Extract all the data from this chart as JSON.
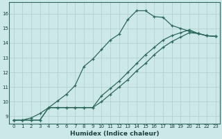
{
  "title": "",
  "xlabel": "Humidex (Indice chaleur)",
  "ylabel": "",
  "bg_color": "#cce8e8",
  "grid_color": "#b0cece",
  "line_color": "#2a6a5a",
  "xlim": [
    -0.5,
    23.5
  ],
  "ylim": [
    8.5,
    16.8
  ],
  "yticks": [
    9,
    10,
    11,
    12,
    13,
    14,
    15,
    16
  ],
  "xticks": [
    0,
    1,
    2,
    3,
    4,
    5,
    6,
    7,
    8,
    9,
    10,
    11,
    12,
    13,
    14,
    15,
    16,
    17,
    18,
    19,
    20,
    21,
    22,
    23
  ],
  "line1_x": [
    0,
    1,
    2,
    3,
    4,
    5,
    6,
    7,
    8,
    9,
    10,
    11,
    12,
    13,
    14,
    15,
    16,
    17,
    18,
    19,
    20,
    21,
    22,
    23
  ],
  "line1_y": [
    8.75,
    8.75,
    8.9,
    9.2,
    9.6,
    10.05,
    10.5,
    11.1,
    12.4,
    12.9,
    13.55,
    14.2,
    14.6,
    15.6,
    16.2,
    16.2,
    15.8,
    15.75,
    15.2,
    15.0,
    14.8,
    14.65,
    14.5,
    14.45
  ],
  "line2_x": [
    0,
    1,
    2,
    3,
    4,
    5,
    6,
    7,
    8,
    9,
    10,
    11,
    12,
    13,
    14,
    15,
    16,
    17,
    18,
    19,
    20,
    21,
    22,
    23
  ],
  "line2_y": [
    8.75,
    8.75,
    8.75,
    8.75,
    9.6,
    9.6,
    9.6,
    9.6,
    9.6,
    9.6,
    10.4,
    10.9,
    11.4,
    12.0,
    12.6,
    13.2,
    13.7,
    14.2,
    14.5,
    14.7,
    14.9,
    14.65,
    14.5,
    14.45
  ],
  "line3_x": [
    0,
    1,
    2,
    3,
    4,
    5,
    6,
    7,
    8,
    9,
    10,
    11,
    12,
    13,
    14,
    15,
    16,
    17,
    18,
    19,
    20,
    21,
    22,
    23
  ],
  "line3_y": [
    8.75,
    8.75,
    8.75,
    8.75,
    9.6,
    9.6,
    9.6,
    9.6,
    9.6,
    9.6,
    10.0,
    10.5,
    11.0,
    11.5,
    12.1,
    12.6,
    13.2,
    13.7,
    14.1,
    14.4,
    14.7,
    14.65,
    14.5,
    14.45
  ]
}
